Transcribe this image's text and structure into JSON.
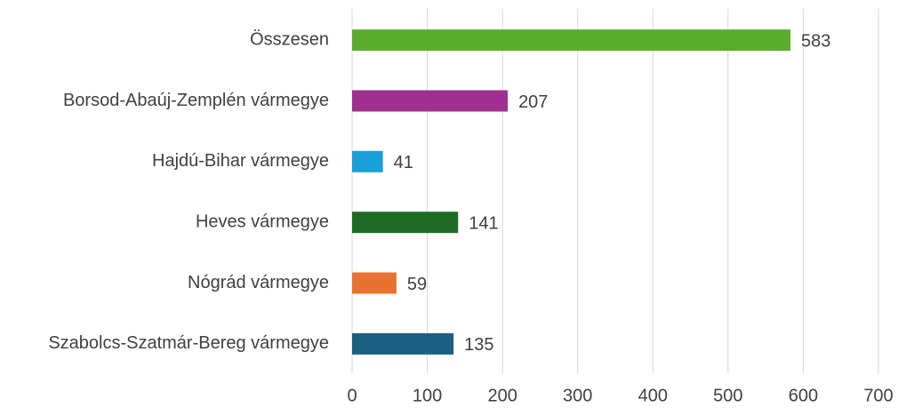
{
  "chart_data": {
    "type": "barh",
    "categories": [
      "Összesen",
      "Borsod-Abaúj-Zemplén vármegye",
      "Hajdú-Bihar vármegye",
      "Heves vármegye",
      "Nógrád vármegye",
      "Szabolcs-Szatmár-Bereg vármegye"
    ],
    "values": [
      583,
      207,
      41,
      141,
      59,
      135
    ],
    "colors": [
      "#5aac2e",
      "#a0308f",
      "#1a9fd8",
      "#1e6b26",
      "#e8722f",
      "#1b5f82"
    ],
    "xlim": [
      0,
      700
    ],
    "xticks": [
      0,
      100,
      200,
      300,
      400,
      500,
      600,
      700
    ],
    "grid": true
  }
}
